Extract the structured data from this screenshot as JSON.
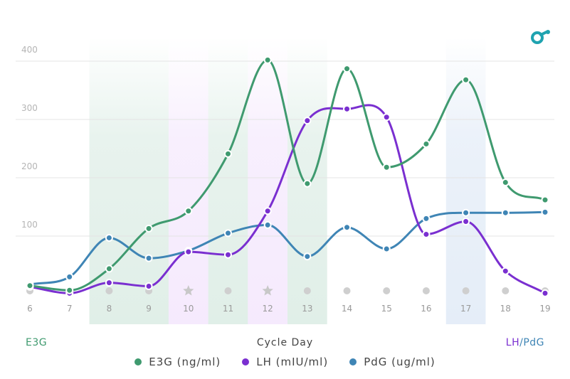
{
  "chart_data": {
    "type": "line",
    "x": [
      6,
      7,
      8,
      9,
      10,
      11,
      12,
      13,
      14,
      15,
      16,
      17,
      18,
      19
    ],
    "x_tick_labels": [
      "6",
      "7",
      "8",
      "9",
      "10",
      "11",
      "12",
      "13",
      "14",
      "15",
      "16",
      "17",
      "18",
      "19"
    ],
    "xlabel": "Cycle Day",
    "y_left_label": "E3G",
    "y_right_label_parts": [
      "LH",
      "/",
      "PdG"
    ],
    "ylim": [
      0,
      420
    ],
    "yticks": [
      100,
      200,
      300,
      400
    ],
    "series": [
      {
        "name": "E3G (ng/ml)",
        "color": "#3f9a6f",
        "values": [
          15,
          7,
          44,
          113,
          143,
          241,
          402,
          190,
          387,
          218,
          258,
          368,
          192,
          162
        ]
      },
      {
        "name": "LH (mIU/ml)",
        "color": "#7a2fd0",
        "values": [
          13,
          2,
          20,
          14,
          73,
          68,
          143,
          298,
          318,
          304,
          103,
          125,
          40,
          2
        ]
      },
      {
        "name": "PdG (ug/ml)",
        "color": "#3f85b5",
        "values": [
          17,
          30,
          97,
          62,
          75,
          105,
          119,
          65,
          115,
          78,
          130,
          140,
          140,
          141
        ]
      }
    ],
    "markers": [
      "dot",
      "dot",
      "dot",
      "dot",
      "star",
      "dot",
      "star",
      "dot",
      "dot",
      "dot",
      "dot",
      "dot",
      "dot",
      "dot"
    ],
    "highlight_bands": [
      {
        "from": 8,
        "to": 9,
        "color": "#3f9a6f"
      },
      {
        "from": 10,
        "to": 10,
        "color": "#c27cf2"
      },
      {
        "from": 11,
        "to": 11,
        "color": "#3f9a6f"
      },
      {
        "from": 12,
        "to": 12,
        "color": "#c27cf2"
      },
      {
        "from": 13,
        "to": 13,
        "color": "#3f9a6f"
      },
      {
        "from": 17,
        "to": 17,
        "color": "#5b8fd1"
      }
    ],
    "grid": true,
    "legend_position": "bottom"
  }
}
